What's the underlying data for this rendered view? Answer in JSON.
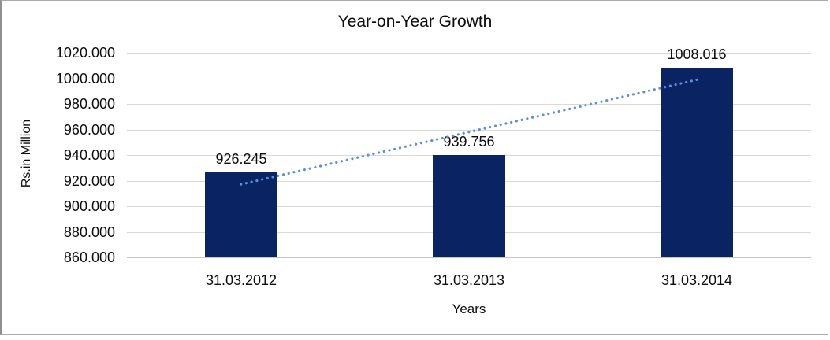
{
  "chart_data": {
    "type": "bar",
    "title": "Year-on-Year Growth",
    "xlabel": "Years",
    "ylabel": "Rs.in Million",
    "categories": [
      "31.03.2012",
      "31.03.2013",
      "31.03.2014"
    ],
    "values": [
      926.245,
      939.756,
      1008.016
    ],
    "data_labels": [
      "926.245",
      "939.756",
      "1008.016"
    ],
    "ylim": [
      860,
      1020
    ],
    "ytick_step": 20,
    "ytick_labels": [
      "1020.000",
      "1000.000",
      "980.000",
      "960.000",
      "940.000",
      "920.000",
      "900.000",
      "880.000",
      "860.000"
    ],
    "grid": true,
    "legend": "none",
    "bar_color": "#0a2463",
    "gridline_color": "#d9d9d9",
    "trendline": {
      "type": "linear",
      "style": "dotted",
      "color": "#5b8fd6",
      "fitted_endpoints": [
        917.12,
        998.89
      ]
    }
  }
}
